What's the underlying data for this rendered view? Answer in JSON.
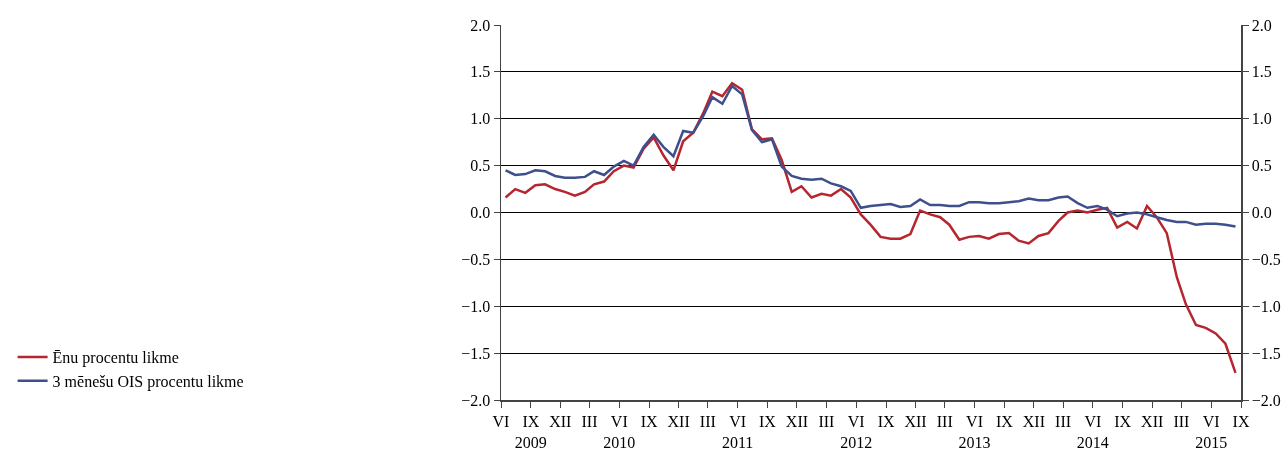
{
  "chart_data": {
    "type": "line",
    "x": [
      "2009-06-15",
      "2009-07-15",
      "2009-08-15",
      "2009-09-15",
      "2009-10-15",
      "2009-11-15",
      "2009-12-15",
      "2010-01-15",
      "2010-02-15",
      "2010-03-15",
      "2010-04-15",
      "2010-05-15",
      "2010-06-15",
      "2010-07-15",
      "2010-08-15",
      "2010-09-15",
      "2010-10-15",
      "2010-11-15",
      "2010-12-15",
      "2011-01-15",
      "2011-02-15",
      "2011-03-15",
      "2011-04-15",
      "2011-05-15",
      "2011-06-15",
      "2011-07-15",
      "2011-08-15",
      "2011-09-15",
      "2011-10-15",
      "2011-11-15",
      "2011-12-15",
      "2012-01-15",
      "2012-02-15",
      "2012-03-15",
      "2012-04-15",
      "2012-05-15",
      "2012-06-15",
      "2012-07-15",
      "2012-08-15",
      "2012-09-15",
      "2012-10-15",
      "2012-11-15",
      "2012-12-15",
      "2013-01-15",
      "2013-02-15",
      "2013-03-15",
      "2013-04-15",
      "2013-05-15",
      "2013-06-15",
      "2013-07-15",
      "2013-08-15",
      "2013-09-15",
      "2013-10-15",
      "2013-11-15",
      "2013-12-15",
      "2014-01-15",
      "2014-02-15",
      "2014-03-15",
      "2014-04-15",
      "2014-05-15",
      "2014-06-15",
      "2014-07-15",
      "2014-08-15",
      "2014-09-15",
      "2014-10-15",
      "2014-11-15",
      "2014-12-15",
      "2015-01-15",
      "2015-02-15",
      "2015-03-15",
      "2015-04-15",
      "2015-05-15",
      "2015-06-15",
      "2015-07-15",
      "2015-08-15"
    ],
    "series": [
      {
        "name": "Ēnu procentu likme",
        "color": "#b5262f",
        "values": [
          0.16,
          0.25,
          0.21,
          0.29,
          0.3,
          0.25,
          0.22,
          0.18,
          0.22,
          0.3,
          0.33,
          0.44,
          0.5,
          0.48,
          0.68,
          0.8,
          0.61,
          0.45,
          0.76,
          0.85,
          1.06,
          1.29,
          1.24,
          1.38,
          1.31,
          0.89,
          0.78,
          0.79,
          0.56,
          0.22,
          0.28,
          0.16,
          0.2,
          0.18,
          0.25,
          0.16,
          -0.02,
          -0.13,
          -0.26,
          -0.28,
          -0.28,
          -0.23,
          0.02,
          -0.02,
          -0.05,
          -0.13,
          -0.29,
          -0.26,
          -0.25,
          -0.28,
          -0.23,
          -0.22,
          -0.3,
          -0.33,
          -0.25,
          -0.22,
          -0.09,
          0.0,
          0.02,
          0.0,
          0.03,
          0.05,
          -0.16,
          -0.1,
          -0.17,
          0.07,
          -0.05,
          -0.22,
          -0.69,
          -0.98,
          -1.2,
          -1.23,
          -1.29,
          -1.4,
          -1.71
        ]
      },
      {
        "name": "3 mēnešu OIS procentu likme",
        "color": "#3f4f8c",
        "values": [
          0.45,
          0.4,
          0.41,
          0.45,
          0.44,
          0.39,
          0.37,
          0.37,
          0.38,
          0.44,
          0.4,
          0.49,
          0.55,
          0.5,
          0.7,
          0.83,
          0.7,
          0.6,
          0.87,
          0.85,
          1.03,
          1.23,
          1.16,
          1.35,
          1.26,
          0.88,
          0.75,
          0.78,
          0.49,
          0.39,
          0.36,
          0.35,
          0.36,
          0.31,
          0.28,
          0.23,
          0.05,
          0.07,
          0.08,
          0.09,
          0.06,
          0.07,
          0.14,
          0.08,
          0.08,
          0.07,
          0.07,
          0.11,
          0.11,
          0.1,
          0.1,
          0.11,
          0.12,
          0.15,
          0.13,
          0.13,
          0.16,
          0.17,
          0.1,
          0.05,
          0.07,
          0.03,
          -0.04,
          -0.01,
          0.0,
          -0.02,
          -0.05,
          -0.08,
          -0.1,
          -0.1,
          -0.13,
          -0.12,
          -0.12,
          -0.13,
          -0.15
        ]
      }
    ],
    "xlim": [
      "2009-06-01",
      "2015-09-01"
    ],
    "xticks": [
      {
        "value": "2009-06-01",
        "label": "VI"
      },
      {
        "value": "2009-09-01",
        "label": "IX\n2009"
      },
      {
        "value": "2009-12-01",
        "label": "XII"
      },
      {
        "value": "2010-03-01",
        "label": "III"
      },
      {
        "value": "2010-06-01",
        "label": "VI\n2010"
      },
      {
        "value": "2010-09-01",
        "label": "IX"
      },
      {
        "value": "2010-12-01",
        "label": "XII"
      },
      {
        "value": "2011-03-01",
        "label": "III"
      },
      {
        "value": "2011-06-01",
        "label": "VI\n2011"
      },
      {
        "value": "2011-09-01",
        "label": "IX"
      },
      {
        "value": "2011-12-01",
        "label": "XII"
      },
      {
        "value": "2012-03-01",
        "label": "III"
      },
      {
        "value": "2012-06-01",
        "label": "VI\n2012"
      },
      {
        "value": "2012-09-01",
        "label": "IX"
      },
      {
        "value": "2012-12-01",
        "label": "XII"
      },
      {
        "value": "2013-03-01",
        "label": "III"
      },
      {
        "value": "2013-06-01",
        "label": "VI\n2013"
      },
      {
        "value": "2013-09-01",
        "label": "IX"
      },
      {
        "value": "2013-12-01",
        "label": "XII"
      },
      {
        "value": "2014-03-01",
        "label": "III"
      },
      {
        "value": "2014-06-01",
        "label": "VI\n2014"
      },
      {
        "value": "2014-09-01",
        "label": "IX"
      },
      {
        "value": "2014-12-01",
        "label": "XII"
      },
      {
        "value": "2015-03-01",
        "label": "III"
      },
      {
        "value": "2015-06-01",
        "label": "VI\n2015"
      },
      {
        "value": "2015-09-01",
        "label": "IX"
      }
    ],
    "ylim": [
      -2.0,
      2.0
    ],
    "yticks": [
      {
        "value": -2.0,
        "label": "−2.0"
      },
      {
        "value": -1.5,
        "label": "−1.5"
      },
      {
        "value": -1.0,
        "label": "−1.0"
      },
      {
        "value": -0.5,
        "label": "−0.5"
      },
      {
        "value": 0.0,
        "label": "0.0"
      },
      {
        "value": 0.5,
        "label": "0.5"
      },
      {
        "value": 1.0,
        "label": "1.0"
      },
      {
        "value": 1.5,
        "label": "1.5"
      },
      {
        "value": 2.0,
        "label": "2.0"
      }
    ],
    "y2lim": [
      -2.0,
      2.0
    ],
    "y2ticks": [
      {
        "value": -2.0,
        "label": "−2.0"
      },
      {
        "value": -1.5,
        "label": "−1.5"
      },
      {
        "value": -1.0,
        "label": "−1.0"
      },
      {
        "value": -0.5,
        "label": "−0.5"
      },
      {
        "value": 0.0,
        "label": "0.0"
      },
      {
        "value": 0.5,
        "label": "0.5"
      },
      {
        "value": 1.0,
        "label": "1.0"
      },
      {
        "value": 1.5,
        "label": "1.5"
      },
      {
        "value": 2.0,
        "label": "2.0"
      }
    ],
    "grid": "y",
    "legend": "bottom left",
    "marker": "none",
    "line_style": "solid"
  }
}
